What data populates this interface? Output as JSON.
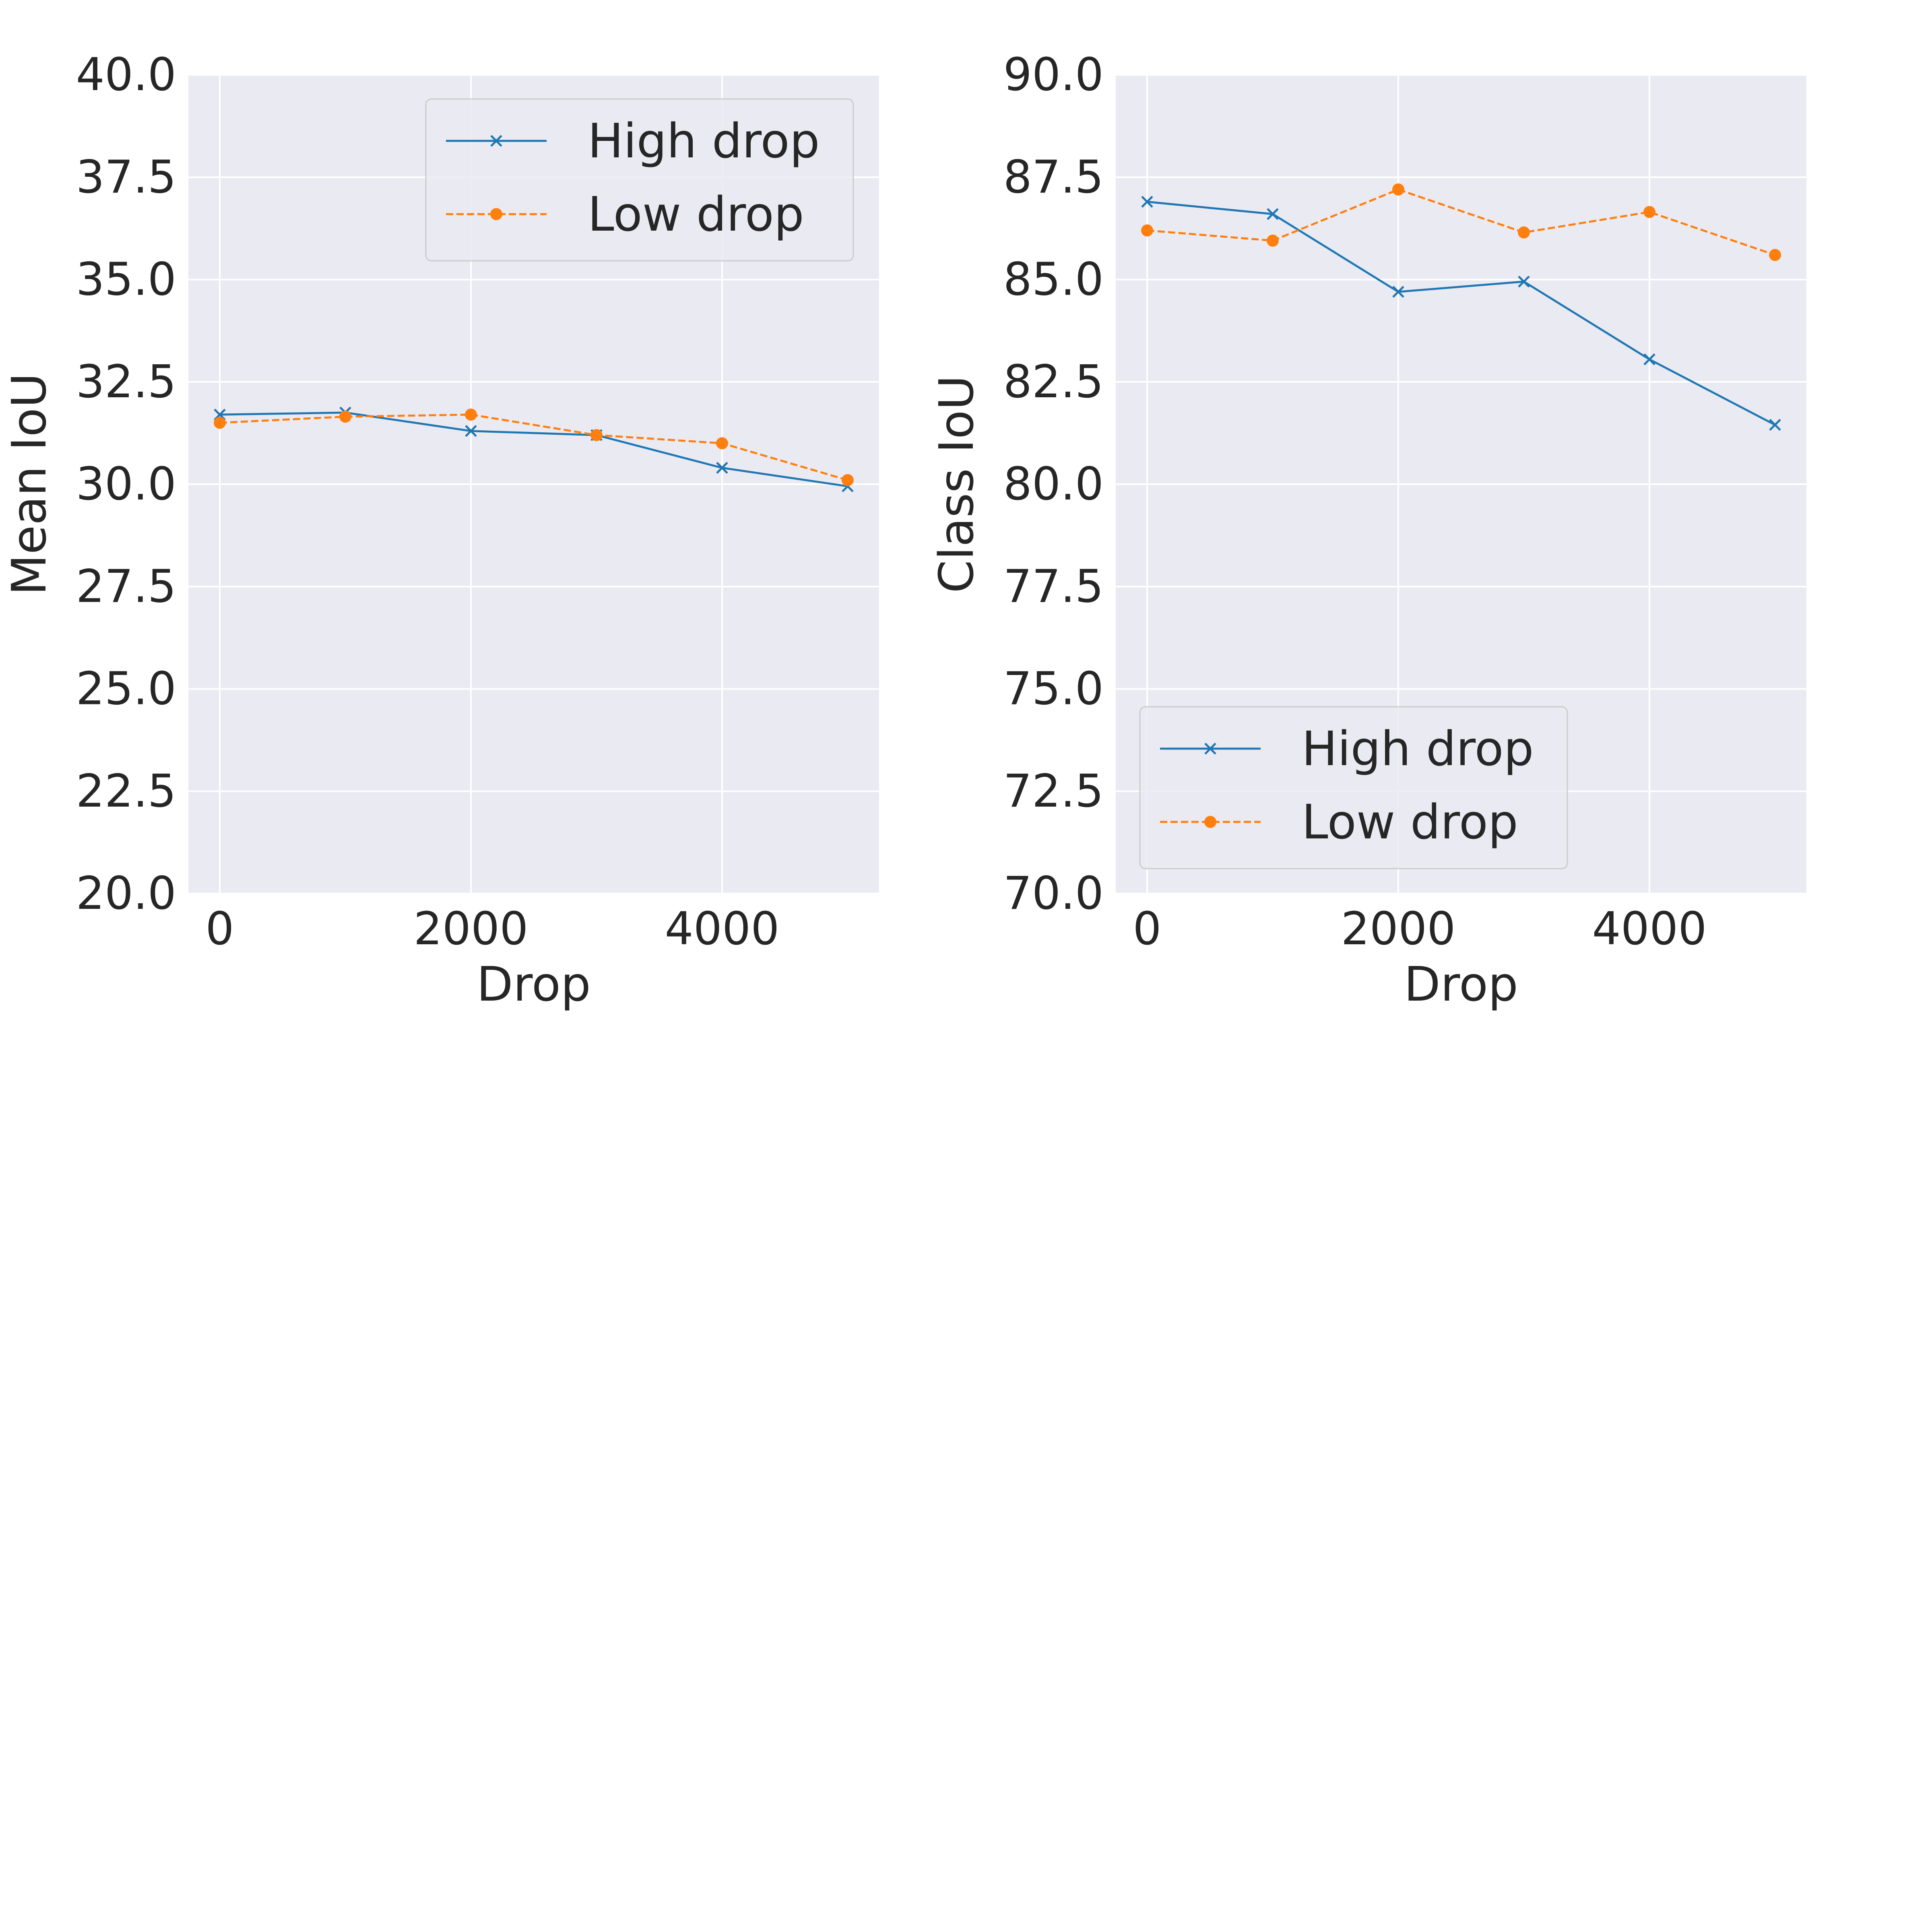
{
  "colors": {
    "background": "#ffffff",
    "plot_background": "#eaeaf2",
    "grid": "#ffffff",
    "text": "#262626",
    "high_drop": "#1f77b4",
    "low_drop": "#ff7f0e"
  },
  "chart_data": [
    {
      "type": "line",
      "xlabel": "Drop",
      "ylabel": "Mean IoU",
      "xlim": [
        -250,
        5250
      ],
      "ylim": [
        20.0,
        40.0
      ],
      "xticks": [
        0,
        2000,
        4000
      ],
      "xtick_labels": [
        "0",
        "2000",
        "4000"
      ],
      "yticks": [
        20.0,
        22.5,
        25.0,
        27.5,
        30.0,
        32.5,
        35.0,
        37.5,
        40.0
      ],
      "ytick_labels": [
        "20.0",
        "22.5",
        "25.0",
        "27.5",
        "30.0",
        "32.5",
        "35.0",
        "37.5",
        "40.0"
      ],
      "grid": true,
      "legend_position": "upper right",
      "x": [
        0,
        1000,
        2000,
        3000,
        4000,
        5000
      ],
      "series": [
        {
          "name": "High drop",
          "marker": "x",
          "line_style": "solid",
          "color_key": "high_drop",
          "values": [
            31.7,
            31.75,
            31.3,
            31.2,
            30.4,
            29.95
          ]
        },
        {
          "name": "Low drop",
          "marker": "circle",
          "line_style": "dashed",
          "color_key": "low_drop",
          "values": [
            31.5,
            31.65,
            31.7,
            31.2,
            31.0,
            30.1
          ]
        }
      ]
    },
    {
      "type": "line",
      "xlabel": "Drop",
      "ylabel": "Class IoU",
      "xlim": [
        -250,
        5250
      ],
      "ylim": [
        70.0,
        90.0
      ],
      "xticks": [
        0,
        2000,
        4000
      ],
      "xtick_labels": [
        "0",
        "2000",
        "4000"
      ],
      "yticks": [
        70.0,
        72.5,
        75.0,
        77.5,
        80.0,
        82.5,
        85.0,
        87.5,
        90.0
      ],
      "ytick_labels": [
        "70.0",
        "72.5",
        "75.0",
        "77.5",
        "80.0",
        "82.5",
        "85.0",
        "87.5",
        "90.0"
      ],
      "grid": true,
      "legend_position": "lower left",
      "x": [
        0,
        1000,
        2000,
        3000,
        4000,
        5000
      ],
      "series": [
        {
          "name": "High drop",
          "marker": "x",
          "line_style": "solid",
          "color_key": "high_drop",
          "values": [
            86.9,
            86.6,
            84.7,
            84.95,
            83.05,
            81.45
          ]
        },
        {
          "name": "Low drop",
          "marker": "circle",
          "line_style": "dashed",
          "color_key": "low_drop",
          "values": [
            86.2,
            85.95,
            87.2,
            86.15,
            86.65,
            85.6
          ]
        }
      ]
    }
  ]
}
